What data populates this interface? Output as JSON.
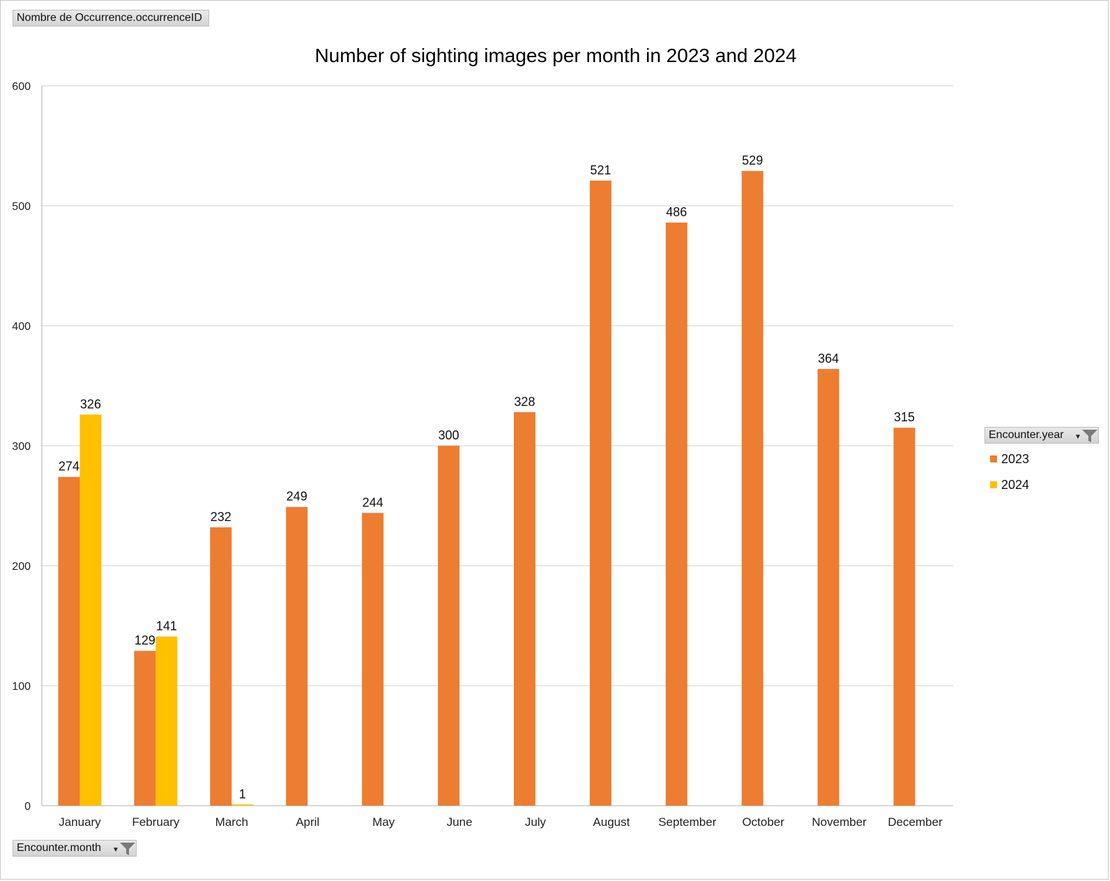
{
  "pivot": {
    "value_field": "Nombre de Occurrence.occurrenceID",
    "legend_field": "Encounter.year",
    "axis_field": "Encounter.month"
  },
  "colors": {
    "2023": "#ED7D31",
    "2024": "#FFC000",
    "grid": "#d9d9d9",
    "axis": "#bfbfbf"
  },
  "icons": {
    "filter": "funnel-filter-icon",
    "dropdown": "dropdown-arrow-icon"
  },
  "chart_data": {
    "type": "bar",
    "title": "Number of sighting images per month in 2023 and 2024",
    "xlabel": "",
    "ylabel": "",
    "ylim": [
      0,
      600
    ],
    "yticks": [
      0,
      100,
      200,
      300,
      400,
      500,
      600
    ],
    "grid": true,
    "legend_position": "right",
    "categories": [
      "January",
      "February",
      "March",
      "April",
      "May",
      "June",
      "July",
      "August",
      "September",
      "October",
      "November",
      "December"
    ],
    "series": [
      {
        "name": "2023",
        "values": [
          274,
          129,
          232,
          249,
          244,
          300,
          328,
          521,
          486,
          529,
          364,
          315
        ]
      },
      {
        "name": "2024",
        "values": [
          326,
          141,
          1,
          null,
          null,
          null,
          null,
          null,
          null,
          null,
          null,
          null
        ]
      }
    ]
  }
}
